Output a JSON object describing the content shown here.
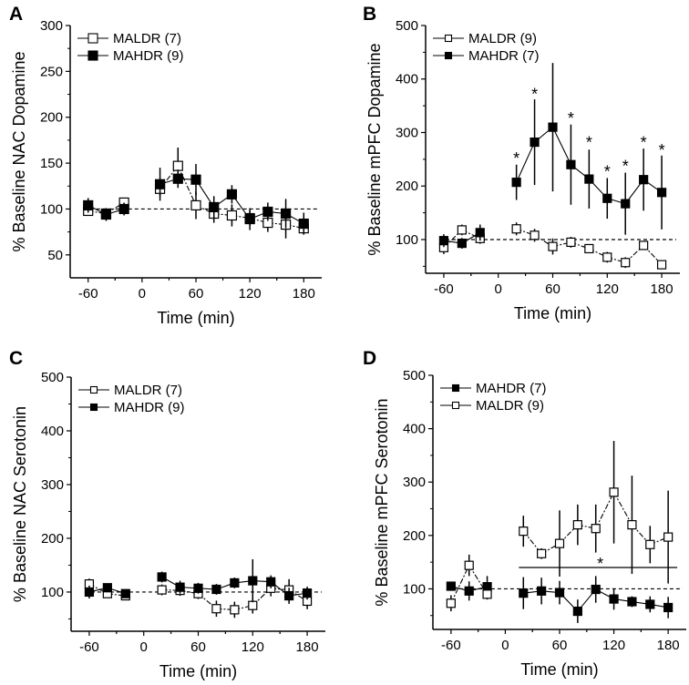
{
  "chart_data": [
    {
      "panel_label": "A",
      "type": "line",
      "xlabel": "Time (min)",
      "ylabel": "% Baseline NAC Dopamine",
      "xlim": [
        -80,
        200
      ],
      "ylim": [
        25,
        300
      ],
      "xticks": [
        -60,
        0,
        60,
        120,
        180
      ],
      "yticks": [
        50,
        100,
        150,
        200,
        250,
        300
      ],
      "baseline": 100,
      "x": [
        -60,
        -40,
        -20,
        20,
        40,
        60,
        80,
        100,
        120,
        140,
        160,
        180
      ],
      "series": [
        {
          "name": "MALDR (7)",
          "marker": "open-square",
          "values": [
            98,
            95,
            107,
            122,
            147,
            104,
            95,
            93,
            90,
            85,
            83,
            79
          ],
          "error": [
            5,
            5,
            5,
            8,
            20,
            15,
            10,
            12,
            8,
            10,
            15,
            6
          ]
        },
        {
          "name": "MAHDR (9)",
          "marker": "filled-square",
          "values": [
            104,
            94,
            100,
            127,
            133,
            132,
            102,
            116,
            89,
            97,
            95,
            84
          ],
          "error": [
            8,
            7,
            7,
            18,
            10,
            17,
            12,
            10,
            12,
            10,
            16,
            12
          ]
        }
      ],
      "annotations": []
    },
    {
      "panel_label": "B",
      "type": "line",
      "xlabel": "Time (min)",
      "ylabel": "% Baseline mPFC Dopamine",
      "xlim": [
        -80,
        200
      ],
      "ylim": [
        37,
        500
      ],
      "xticks": [
        -60,
        0,
        60,
        120,
        180
      ],
      "yticks": [
        100,
        200,
        300,
        400,
        500
      ],
      "baseline": 100,
      "x": [
        -60,
        -40,
        -20,
        20,
        40,
        60,
        80,
        100,
        120,
        140,
        160,
        180
      ],
      "series": [
        {
          "name": "MALDR (9)",
          "marker": "open-square",
          "values": [
            85,
            118,
            102,
            120,
            108,
            87,
            95,
            83,
            67,
            57,
            89,
            53
          ],
          "error": [
            12,
            10,
            10,
            12,
            12,
            15,
            10,
            8,
            10,
            10,
            8,
            8
          ]
        },
        {
          "name": "MAHDR (7)",
          "marker": "filled-square",
          "values": [
            98,
            93,
            113,
            207,
            282,
            310,
            240,
            213,
            177,
            167,
            212,
            188
          ],
          "error": [
            12,
            10,
            15,
            33,
            80,
            120,
            75,
            55,
            38,
            58,
            58,
            69
          ]
        }
      ],
      "annotations": [
        {
          "text": "*",
          "x": 20,
          "y": 255
        },
        {
          "text": "*",
          "x": 40,
          "y": 375
        },
        {
          "text": "*",
          "x": 80,
          "y": 330
        },
        {
          "text": "*",
          "x": 100,
          "y": 285
        },
        {
          "text": "*",
          "x": 120,
          "y": 230
        },
        {
          "text": "*",
          "x": 140,
          "y": 240
        },
        {
          "text": "*",
          "x": 160,
          "y": 285
        },
        {
          "text": "*",
          "x": 180,
          "y": 270
        }
      ]
    },
    {
      "panel_label": "C",
      "type": "line",
      "xlabel": "Time (min)",
      "ylabel": "% Baseline NAC Serotonin",
      "xlim": [
        -80,
        200
      ],
      "ylim": [
        27,
        500
      ],
      "xticks": [
        -60,
        0,
        60,
        120,
        180
      ],
      "yticks": [
        100,
        200,
        300,
        400,
        500
      ],
      "baseline": 100,
      "x": [
        -60,
        -40,
        -20,
        20,
        40,
        60,
        80,
        100,
        120,
        140,
        160,
        180
      ],
      "series": [
        {
          "name": "MALDR (7)",
          "marker": "open-square",
          "values": [
            115,
            97,
            93,
            104,
            103,
            97,
            69,
            67,
            75,
            107,
            104,
            83
          ],
          "error": [
            10,
            8,
            8,
            10,
            10,
            10,
            15,
            15,
            15,
            15,
            20,
            15
          ]
        },
        {
          "name": "MAHDR (9)",
          "marker": "filled-square",
          "values": [
            100,
            108,
            97,
            128,
            109,
            107,
            105,
            117,
            121,
            119,
            93,
            98
          ],
          "error": [
            12,
            8,
            8,
            10,
            12,
            10,
            10,
            10,
            40,
            12,
            15,
            12
          ]
        }
      ],
      "annotations": []
    },
    {
      "panel_label": "D",
      "type": "line",
      "xlabel": "Time (min)",
      "ylabel": "% Baseline mPFC Serotonin",
      "xlim": [
        -80,
        200
      ],
      "ylim": [
        24,
        500
      ],
      "xticks": [
        -60,
        0,
        60,
        120,
        180
      ],
      "yticks": [
        100,
        200,
        300,
        400,
        500
      ],
      "baseline": 100,
      "x": [
        -60,
        -40,
        -20,
        20,
        40,
        60,
        80,
        100,
        120,
        140,
        160,
        180
      ],
      "series": [
        {
          "name": "MAHDR (7)",
          "marker": "filled-square",
          "values": [
            105,
            96,
            104,
            92,
            96,
            93,
            58,
            99,
            81,
            76,
            71,
            65
          ],
          "error": [
            8,
            18,
            20,
            30,
            25,
            22,
            22,
            25,
            20,
            10,
            15,
            20
          ]
        },
        {
          "name": "MALDR (9)",
          "marker": "open-square",
          "values": [
            73,
            144,
            90,
            208,
            166,
            185,
            220,
            213,
            281,
            220,
            183,
            197
          ],
          "error": [
            15,
            20,
            10,
            29,
            10,
            62,
            38,
            45,
            96,
            92,
            35,
            87
          ]
        }
      ],
      "significance_bar": {
        "x_start": 15,
        "x_end": 190,
        "y": 140
      },
      "annotations": [
        {
          "text": "*",
          "x": 105,
          "y": 150
        }
      ]
    }
  ]
}
